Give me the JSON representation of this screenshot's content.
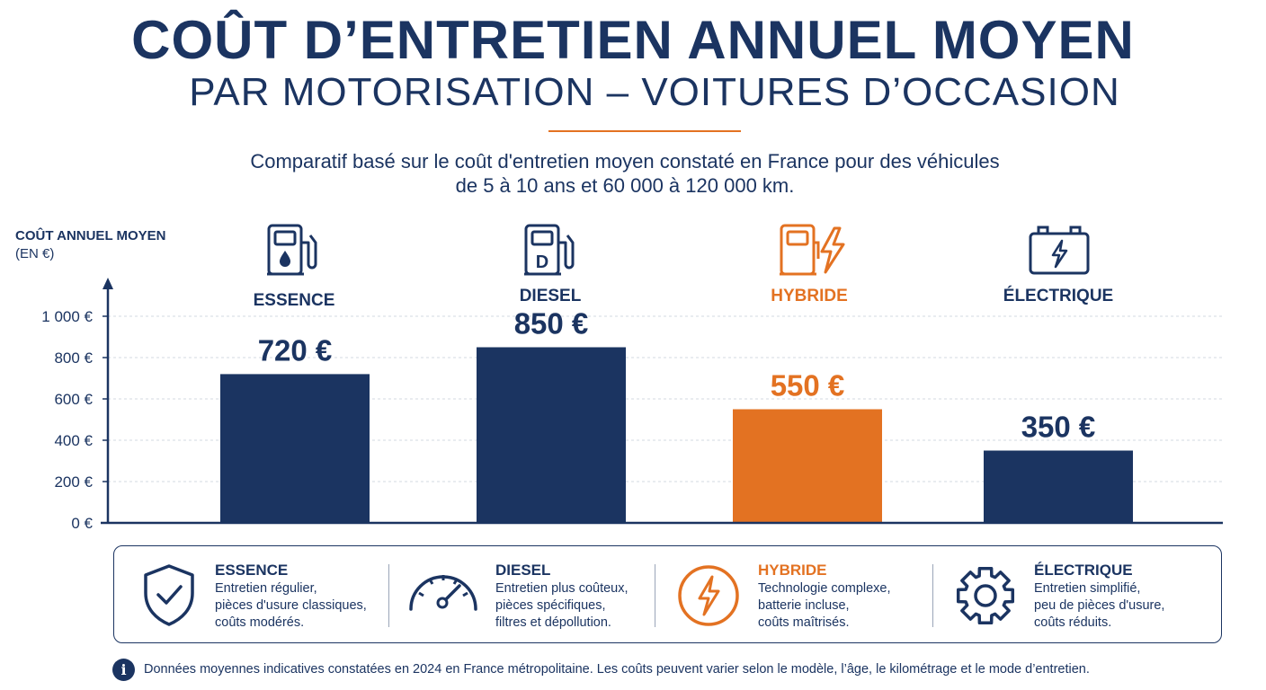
{
  "header": {
    "title": "COÛT D’ENTRETIEN ANNUEL MOYEN",
    "subtitle": "PAR MOTORISATION – VOITURES D’OCCASION",
    "description_line1": "Comparatif basé sur le coût d'entretien moyen constaté en France pour des véhicules",
    "description_line2": "de 5 à 10 ans et 60 000 à 120 000 km."
  },
  "axis": {
    "label_line1": "COÛT ANNUEL MOYEN",
    "label_line2": "(EN €)"
  },
  "colors": {
    "navy": "#1b3461",
    "orange": "#e37222",
    "grid": "#d3d8e0"
  },
  "chart_data": {
    "type": "bar",
    "categories": [
      "ESSENCE",
      "DIESEL",
      "HYBRIDE",
      "ÉLECTRIQUE"
    ],
    "values": [
      720,
      850,
      550,
      350
    ],
    "value_labels": [
      "720 €",
      "850 €",
      "550 €",
      "350 €"
    ],
    "bar_colors": [
      "#1b3461",
      "#1b3461",
      "#e37222",
      "#1b3461"
    ],
    "icons": [
      "gas-pump-icon",
      "diesel-pump-icon",
      "hybrid-pump-icon",
      "battery-icon"
    ],
    "ylim": [
      0,
      1000
    ],
    "yticks": [
      0,
      200,
      400,
      600,
      800,
      1000
    ],
    "ytick_labels": [
      "0 €",
      "200 €",
      "400 €",
      "600 €",
      "800 €",
      "1 000 €"
    ],
    "ylabel": "COÛT ANNUEL MOYEN (EN €)",
    "grid": true
  },
  "legend": [
    {
      "title": "ESSENCE",
      "icon": "shield-check-icon",
      "lines": [
        "Entretien régulier,",
        "pièces d'usure classiques,",
        "coûts modérés."
      ]
    },
    {
      "title": "DIESEL",
      "icon": "gauge-icon",
      "lines": [
        "Entretien plus coûteux,",
        "pièces spécifiques,",
        "filtres et dépollution."
      ]
    },
    {
      "title": "HYBRIDE",
      "icon": "lightning-circle-icon",
      "lines": [
        "Technologie complexe,",
        "batterie incluse,",
        "coûts maîtrisés."
      ]
    },
    {
      "title": "ÉLECTRIQUE",
      "icon": "gear-icon",
      "lines": [
        "Entretien simplifié,",
        "peu de pièces d'usure,",
        "coûts réduits."
      ]
    }
  ],
  "footer": {
    "icon": "info-icon",
    "icon_glyph": "i",
    "text": "Données moyennes indicatives constatées en 2024 en France métropolitaine. Les coûts peuvent varier selon le modèle, l’âge, le kilométrage et le mode d’entretien."
  }
}
